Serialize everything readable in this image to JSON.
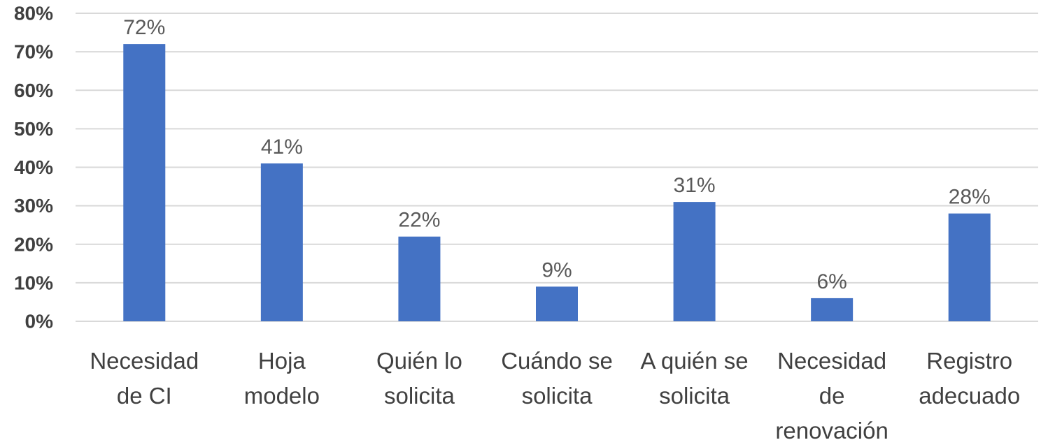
{
  "chart_data": {
    "type": "bar",
    "categories": [
      "Necesidad de CI",
      "Hoja modelo",
      "Quién lo solicita",
      "Cuándo se solicita",
      "A quién se solicita",
      "Necesidad de renovación",
      "Registro adecuado"
    ],
    "category_lines": [
      [
        "Necesidad",
        "de CI"
      ],
      [
        "Hoja",
        "modelo"
      ],
      [
        "Quién lo",
        "solicita"
      ],
      [
        "Cuándo se",
        "solicita"
      ],
      [
        "A quién se",
        "solicita"
      ],
      [
        "Necesidad",
        "de",
        "renovación"
      ],
      [
        "Registro",
        "adecuado"
      ]
    ],
    "values": [
      72,
      41,
      22,
      9,
      31,
      6,
      28
    ],
    "data_labels": [
      "72%",
      "41%",
      "22%",
      "9%",
      "31%",
      "6%",
      "28%"
    ],
    "y_ticks": [
      0,
      10,
      20,
      30,
      40,
      50,
      60,
      70,
      80
    ],
    "y_tick_labels": [
      "0%",
      "10%",
      "20%",
      "30%",
      "40%",
      "50%",
      "60%",
      "70%",
      "80%"
    ],
    "ylim": [
      0,
      80
    ],
    "grid": true,
    "legend": "none",
    "title": "",
    "xlabel": "",
    "ylabel": "",
    "bar_color": "#4472c4",
    "grid_color": "#d9d9d9"
  }
}
